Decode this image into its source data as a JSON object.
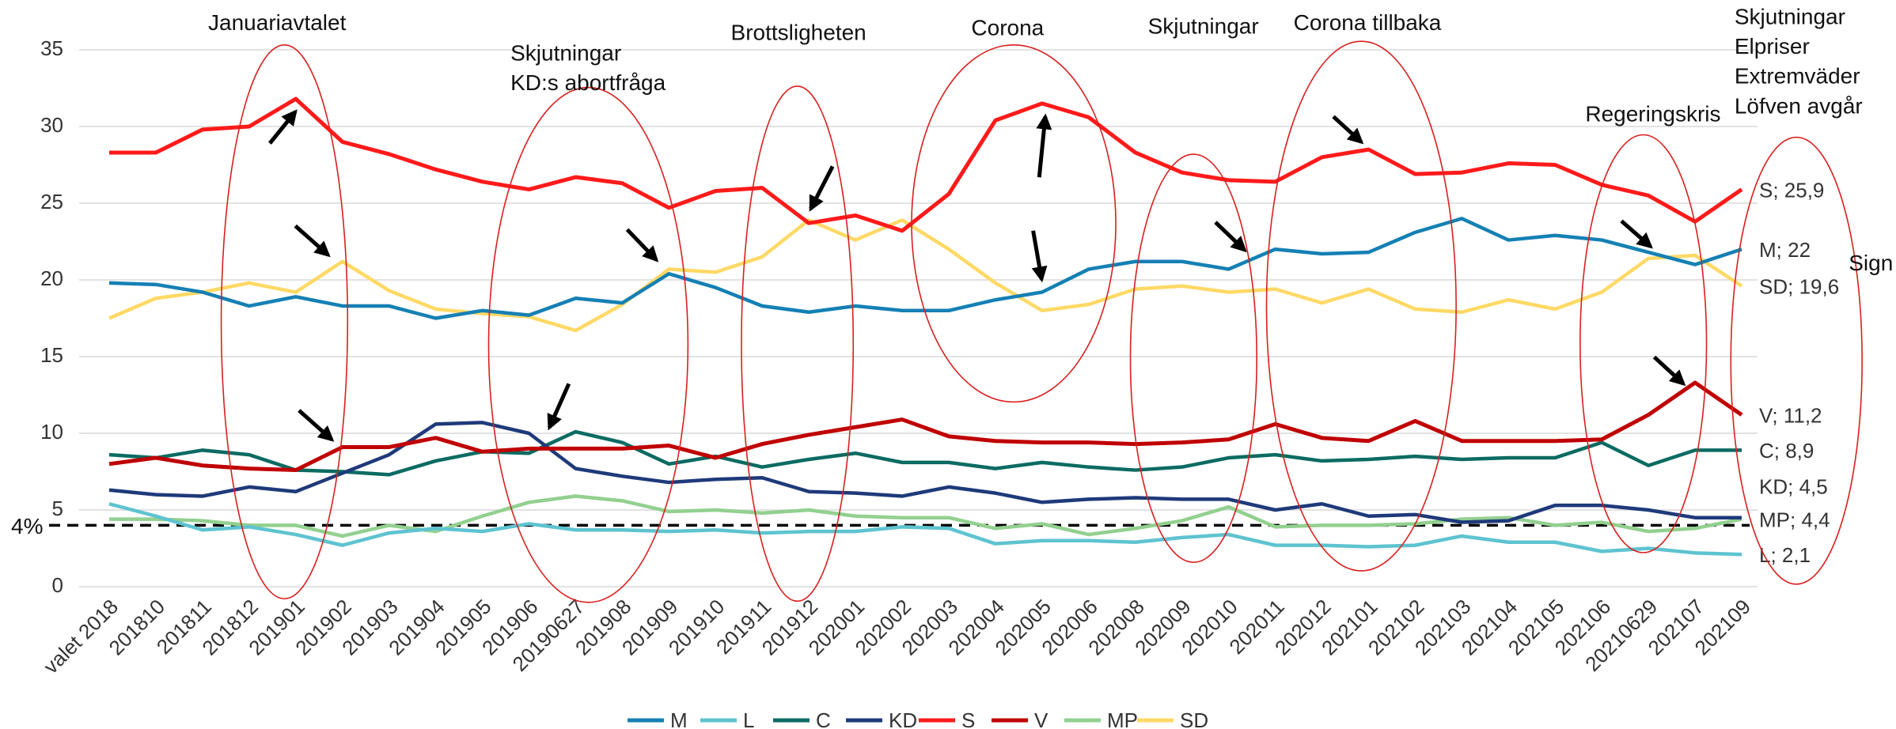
{
  "chart_data": {
    "type": "line",
    "categories": [
      "valet 2018",
      "201810",
      "201811",
      "201812",
      "201901",
      "201902",
      "201903",
      "201904",
      "201905",
      "201906",
      "20190627",
      "201908",
      "201909",
      "201910",
      "201911",
      "201912",
      "202001",
      "202002",
      "202003",
      "202004",
      "202005",
      "202006",
      "202008",
      "202009",
      "202010",
      "202011",
      "202012",
      "202101",
      "202102",
      "202103",
      "202104",
      "202105",
      "202106",
      "20210629",
      "202107",
      "202109"
    ],
    "ylim": [
      0,
      35
    ],
    "yticks": [
      0,
      5,
      10,
      15,
      20,
      25,
      30,
      35
    ],
    "grid": true,
    "threshold": {
      "value": 4,
      "label": "4%"
    },
    "annotations": [
      [
        "Januariavtalet"
      ],
      [
        "Skjutningar",
        "KD:s abortfråga"
      ],
      [
        "Brottsligheten"
      ],
      [
        "Corona"
      ],
      [
        "Skjutningar"
      ],
      [
        "Corona tillbaka"
      ],
      [
        "Regeringskris"
      ],
      [
        "Skjutningar",
        "Elpriser",
        "Extremväder",
        "Löfven avgår"
      ],
      [
        "Sign"
      ]
    ],
    "legend": "bottom",
    "series": [
      {
        "name": "M",
        "color": "#1580b4",
        "values": [
          19.8,
          19.7,
          19.2,
          18.3,
          18.9,
          18.3,
          18.3,
          17.5,
          18.0,
          17.7,
          18.8,
          18.5,
          20.4,
          19.5,
          18.3,
          17.9,
          18.3,
          18.0,
          18.0,
          18.7,
          19.2,
          20.7,
          21.2,
          21.2,
          20.7,
          22.0,
          21.7,
          21.8,
          23.1,
          24.0,
          22.6,
          22.9,
          22.6,
          21.8,
          21.0,
          22.0
        ],
        "value_labels": [
          null,
          null,
          null,
          null,
          null,
          null,
          null,
          null,
          null,
          null,
          null,
          null,
          null,
          null,
          null,
          null,
          null,
          null,
          null,
          null,
          null,
          null,
          null,
          null,
          null,
          null,
          null,
          null,
          null,
          null,
          null,
          null,
          null,
          null,
          null,
          "M; 22"
        ]
      },
      {
        "name": "L",
        "color": "#5ec3d0",
        "values": [
          5.4,
          4.6,
          3.7,
          3.9,
          3.4,
          2.7,
          3.5,
          3.8,
          3.6,
          4.1,
          3.7,
          3.7,
          3.6,
          3.7,
          3.5,
          3.6,
          3.6,
          3.9,
          3.8,
          2.8,
          3.0,
          3.0,
          2.9,
          3.2,
          3.4,
          2.7,
          2.7,
          2.6,
          2.7,
          3.3,
          2.9,
          2.9,
          2.3,
          2.5,
          2.2,
          2.1
        ],
        "value_labels": [
          null,
          null,
          null,
          null,
          null,
          null,
          null,
          null,
          null,
          null,
          null,
          null,
          null,
          null,
          null,
          null,
          null,
          null,
          null,
          null,
          null,
          null,
          null,
          null,
          null,
          null,
          null,
          null,
          null,
          null,
          null,
          null,
          null,
          null,
          null,
          "L; 2,1"
        ]
      },
      {
        "name": "C",
        "color": "#0b6b62",
        "values": [
          8.6,
          8.4,
          8.9,
          8.6,
          7.6,
          7.5,
          7.3,
          8.2,
          8.8,
          8.7,
          10.1,
          9.4,
          8.0,
          8.5,
          7.8,
          8.3,
          8.7,
          8.1,
          8.1,
          7.7,
          8.1,
          7.8,
          7.6,
          7.8,
          8.4,
          8.6,
          8.2,
          8.3,
          8.5,
          8.3,
          8.4,
          8.4,
          9.4,
          7.9,
          8.9,
          8.9
        ],
        "value_labels": [
          null,
          null,
          null,
          null,
          null,
          null,
          null,
          null,
          null,
          null,
          null,
          null,
          null,
          null,
          null,
          null,
          null,
          null,
          null,
          null,
          null,
          null,
          null,
          null,
          null,
          null,
          null,
          null,
          null,
          null,
          null,
          null,
          null,
          null,
          null,
          "C; 8,9"
        ]
      },
      {
        "name": "KD",
        "color": "#1f3a7a",
        "values": [
          6.3,
          6.0,
          5.9,
          6.5,
          6.2,
          7.4,
          8.6,
          10.6,
          10.7,
          10.0,
          7.7,
          7.2,
          6.8,
          7.0,
          7.1,
          6.2,
          6.1,
          5.9,
          6.5,
          6.1,
          5.5,
          5.7,
          5.8,
          5.7,
          5.7,
          5.0,
          5.4,
          4.6,
          4.7,
          4.2,
          4.3,
          5.3,
          5.3,
          5.0,
          4.5,
          4.5
        ],
        "value_labels": [
          null,
          null,
          null,
          null,
          null,
          null,
          null,
          null,
          null,
          null,
          null,
          null,
          null,
          null,
          null,
          null,
          null,
          null,
          null,
          null,
          null,
          null,
          null,
          null,
          null,
          null,
          null,
          null,
          null,
          null,
          null,
          null,
          null,
          null,
          null,
          "KD; 4,5"
        ]
      },
      {
        "name": "S",
        "color": "#ff1a1a",
        "values": [
          28.3,
          28.3,
          29.8,
          30.0,
          31.8,
          29.0,
          28.2,
          27.2,
          26.4,
          25.9,
          26.7,
          26.3,
          24.7,
          25.8,
          26.0,
          23.7,
          24.2,
          23.2,
          25.6,
          30.4,
          31.5,
          30.6,
          28.3,
          27.0,
          26.5,
          26.4,
          28.0,
          28.5,
          26.9,
          27.0,
          27.6,
          27.5,
          26.2,
          25.5,
          23.8,
          25.9
        ],
        "value_labels": [
          null,
          null,
          null,
          null,
          null,
          null,
          null,
          null,
          null,
          null,
          null,
          null,
          null,
          null,
          null,
          null,
          null,
          null,
          null,
          null,
          null,
          null,
          null,
          null,
          null,
          null,
          null,
          null,
          null,
          null,
          null,
          null,
          null,
          null,
          null,
          "S; 25,9"
        ]
      },
      {
        "name": "V",
        "color": "#c00000",
        "values": [
          8.0,
          8.4,
          7.9,
          7.7,
          7.6,
          9.1,
          9.1,
          9.7,
          8.8,
          9.0,
          9.0,
          9.0,
          9.2,
          8.4,
          9.3,
          9.9,
          10.4,
          10.9,
          9.8,
          9.5,
          9.4,
          9.4,
          9.3,
          9.4,
          9.6,
          10.6,
          9.7,
          9.5,
          10.8,
          9.5,
          9.5,
          9.5,
          9.6,
          11.2,
          13.3,
          11.2
        ],
        "value_labels": [
          null,
          null,
          null,
          null,
          null,
          null,
          null,
          null,
          null,
          null,
          null,
          null,
          null,
          null,
          null,
          null,
          null,
          null,
          null,
          null,
          null,
          null,
          null,
          null,
          null,
          null,
          null,
          null,
          null,
          null,
          null,
          null,
          null,
          null,
          null,
          "V; 11,2"
        ]
      },
      {
        "name": "MP",
        "color": "#92d08f",
        "values": [
          4.4,
          4.4,
          4.3,
          4.0,
          4.0,
          3.3,
          4.0,
          3.6,
          4.6,
          5.5,
          5.9,
          5.6,
          4.9,
          5.0,
          4.8,
          5.0,
          4.6,
          4.5,
          4.5,
          3.8,
          4.1,
          3.4,
          3.8,
          4.3,
          5.2,
          3.9,
          4.0,
          4.0,
          4.1,
          4.4,
          4.5,
          4.0,
          4.2,
          3.6,
          3.8,
          4.4
        ],
        "value_labels": [
          null,
          null,
          null,
          null,
          null,
          null,
          null,
          null,
          null,
          null,
          null,
          null,
          null,
          null,
          null,
          null,
          null,
          null,
          null,
          null,
          null,
          null,
          null,
          null,
          null,
          null,
          null,
          null,
          null,
          null,
          null,
          null,
          null,
          null,
          null,
          "MP; 4,4"
        ]
      },
      {
        "name": "SD",
        "color": "#ffd966",
        "values": [
          17.5,
          18.8,
          19.2,
          19.8,
          19.2,
          21.2,
          19.3,
          18.1,
          17.8,
          17.6,
          16.7,
          18.4,
          20.7,
          20.5,
          21.5,
          23.9,
          22.6,
          23.9,
          22.0,
          19.8,
          18.0,
          18.4,
          19.4,
          19.6,
          19.2,
          19.4,
          18.5,
          19.4,
          18.1,
          17.9,
          18.7,
          18.1,
          19.2,
          21.4,
          21.6,
          19.6
        ],
        "value_labels": [
          null,
          null,
          null,
          null,
          null,
          null,
          null,
          null,
          null,
          null,
          null,
          null,
          null,
          null,
          null,
          null,
          null,
          null,
          null,
          null,
          null,
          null,
          null,
          null,
          null,
          null,
          null,
          null,
          null,
          null,
          null,
          null,
          null,
          null,
          null,
          "SD; 19,6"
        ]
      }
    ]
  }
}
